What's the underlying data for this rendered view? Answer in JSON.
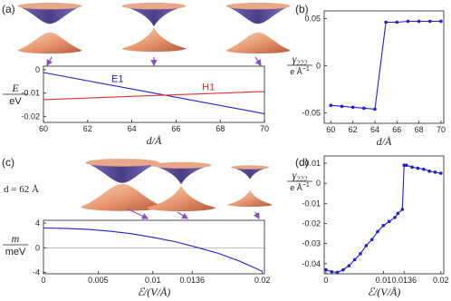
{
  "chart_data": [
    {
      "type": "line",
      "panel_label": "(a)",
      "x_label": "d/Å",
      "y_label": {
        "numerator": "E",
        "denominator": "eV"
      },
      "x": [
        60,
        70
      ],
      "series": [
        {
          "name": "E1",
          "color": "#1f1fd0",
          "values": [
            -0.0012,
            -0.0188
          ]
        },
        {
          "name": "H1",
          "color": "#e03030",
          "values": [
            -0.0128,
            -0.0093
          ]
        }
      ],
      "xlim": [
        60,
        70
      ],
      "xticks": [
        60,
        62,
        64,
        66,
        68,
        70
      ],
      "ylim": [
        -0.0225,
        0.0015
      ],
      "yticks": [
        0,
        -0.01,
        -0.02
      ],
      "markers": false,
      "zero_line": false
    },
    {
      "type": "line",
      "panel_label": "(b)",
      "x_label": "d/Å",
      "y_label": {
        "symbol": "γ",
        "subscript": "222",
        "unit": "e Å",
        "unit_exponent": "−1"
      },
      "x": [
        60,
        61,
        62,
        63,
        64,
        65,
        66,
        67,
        68,
        69,
        70
      ],
      "series": [
        {
          "color": "#1f1fd0",
          "values": [
            -0.042,
            -0.043,
            -0.044,
            -0.045,
            -0.046,
            0.046,
            0.046,
            0.047,
            0.047,
            0.047,
            0.047
          ]
        }
      ],
      "xlim": [
        59.4,
        70.25
      ],
      "xticks": [
        60,
        62,
        64,
        66,
        68,
        70
      ],
      "ylim": [
        -0.061,
        0.058
      ],
      "yticks": [
        0.05,
        0,
        -0.05
      ],
      "markers": true,
      "zero_line": false
    },
    {
      "type": "line",
      "panel_label": "(c)",
      "annotation": "d = 62 Å",
      "x_label": "ℰ/(V/Å)",
      "y_label": {
        "numerator": "m",
        "denominator": "meV"
      },
      "x": [
        0,
        0.002,
        0.004,
        0.006,
        0.008,
        0.01,
        0.012,
        0.014,
        0.016,
        0.018,
        0.02
      ],
      "series": [
        {
          "color": "#1f1fd0",
          "values": [
            3.2,
            3.15,
            3.0,
            2.7,
            2.3,
            1.7,
            1.0,
            0.1,
            -0.9,
            -2.2,
            -3.8
          ]
        }
      ],
      "xlim": [
        0,
        0.0202
      ],
      "xticks": [
        0,
        0.005,
        0.01,
        0.0136,
        0.02
      ],
      "ylim": [
        -4.2,
        4.45
      ],
      "yticks": [
        4,
        0,
        -4
      ],
      "markers": false,
      "zero_line": true
    },
    {
      "type": "line",
      "panel_label": "(d)",
      "x_label": "ℰ/(V/Å)",
      "y_label": {
        "symbol": "γ",
        "subscript": "222",
        "unit": "e Å",
        "unit_exponent": "−1"
      },
      "x": [
        0,
        0.001,
        0.002,
        0.003,
        0.004,
        0.005,
        0.006,
        0.007,
        0.008,
        0.009,
        0.01,
        0.011,
        0.012,
        0.0125,
        0.0133,
        0.0136,
        0.014,
        0.015,
        0.016,
        0.017,
        0.018,
        0.019,
        0.02
      ],
      "series": [
        {
          "color": "#1f1fd0",
          "values": [
            -0.043,
            -0.044,
            -0.0443,
            -0.043,
            -0.041,
            -0.038,
            -0.035,
            -0.031,
            -0.028,
            -0.024,
            -0.021,
            -0.019,
            -0.017,
            -0.015,
            -0.013,
            0.009,
            0.009,
            0.008,
            0.0075,
            0.007,
            0.006,
            0.0055,
            0.005
          ]
        }
      ],
      "xlim": [
        -0.0003,
        0.0205
      ],
      "xticks": [
        0,
        0.01,
        0.0136,
        0.02
      ],
      "ylim": [
        -0.045,
        0.0136
      ],
      "yticks": [
        0.01,
        0,
        -0.01,
        -0.02,
        -0.03,
        -0.04
      ],
      "markers": true,
      "zero_line": false
    }
  ]
}
